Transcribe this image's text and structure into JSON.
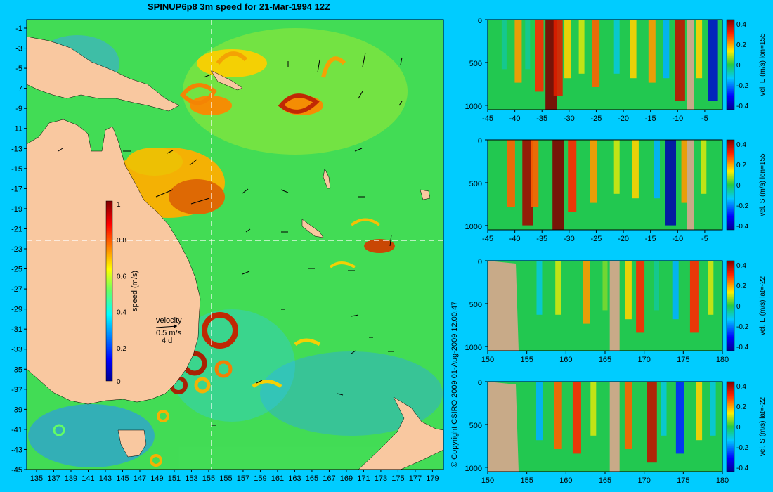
{
  "title": "SPINUP6p8 3m speed for 21-Mar-1994 12Z",
  "copyright": "© Copyright CSIRO 2009   01-Aug-2009 12:00:47",
  "colors": {
    "land": "#f9c8a0",
    "section_land": "#c8aa88",
    "bg": "#00ccff",
    "accent": "#ffffff"
  },
  "chart_data": [
    {
      "type": "heatmap",
      "name": "speed map",
      "title": "SPINUP6p8 3m speed for 21-Mar-1994 12Z",
      "x_ticks": [
        "135",
        "137",
        "139",
        "141",
        "143",
        "145",
        "147",
        "149",
        "151",
        "153",
        "155",
        "155",
        "157",
        "159",
        "161",
        "163",
        "165",
        "167",
        "169",
        "171",
        "173",
        "175",
        "177",
        "179"
      ],
      "y_ticks": [
        "-1",
        "-3",
        "-5",
        "-7",
        "-9",
        "-11",
        "-13",
        "-15",
        "-17",
        "-19",
        "-21",
        "-23",
        "-25",
        "-27",
        "-29",
        "-31",
        "-33",
        "-35",
        "-37",
        "-39",
        "-41",
        "-43",
        "-45"
      ],
      "colorbar": {
        "label": "speed (m/s)",
        "ticks": [
          "1",
          "0.8",
          "0.6",
          "0.4",
          "0.2",
          "0"
        ],
        "range": [
          0,
          1
        ]
      },
      "velocity_key": {
        "label": "velocity",
        "scale": "0.5 m/s",
        "time": "4 d"
      },
      "crosshair": {
        "lon": 155,
        "lat": -22
      }
    },
    {
      "type": "heatmap",
      "name": "section-1",
      "x_ticks": [
        "-45",
        "-40",
        "-35",
        "-30",
        "-25",
        "-20",
        "-15",
        "-10",
        "-5"
      ],
      "y_ticks": [
        "0",
        "500",
        "1000"
      ],
      "colorbar": {
        "label": "vel. E (m/s) lon=155",
        "ticks": [
          "0.4",
          "0.2",
          "0",
          "-0.2",
          "-0.4"
        ],
        "range": [
          -0.4,
          0.4
        ]
      }
    },
    {
      "type": "heatmap",
      "name": "section-2",
      "x_ticks": [
        "-45",
        "-40",
        "-35",
        "-30",
        "-25",
        "-20",
        "-15",
        "-10",
        "-5"
      ],
      "y_ticks": [
        "0",
        "500",
        "1000"
      ],
      "colorbar": {
        "label": "vel. S (m/s) lon=155",
        "ticks": [
          "0.4",
          "0.2",
          "0",
          "-0.2",
          "-0.4"
        ],
        "range": [
          -0.4,
          0.4
        ]
      }
    },
    {
      "type": "heatmap",
      "name": "section-3",
      "x_ticks": [
        "150",
        "155",
        "160",
        "165",
        "170",
        "175",
        "180"
      ],
      "y_ticks": [
        "0",
        "500",
        "1000"
      ],
      "colorbar": {
        "label": "vel. E (m/s) lat=-22",
        "ticks": [
          "0.4",
          "0.2",
          "0",
          "-0.2",
          "-0.4"
        ],
        "range": [
          -0.4,
          0.4
        ]
      }
    },
    {
      "type": "heatmap",
      "name": "section-4",
      "x_ticks": [
        "150",
        "155",
        "160",
        "165",
        "170",
        "175",
        "180"
      ],
      "y_ticks": [
        "0",
        "500",
        "1000"
      ],
      "colorbar": {
        "label": "vel. S (m/s) lat=-22",
        "ticks": [
          "0.4",
          "0.2",
          "0",
          "-0.2",
          "-0.4"
        ],
        "range": [
          -0.4,
          0.4
        ]
      }
    }
  ]
}
